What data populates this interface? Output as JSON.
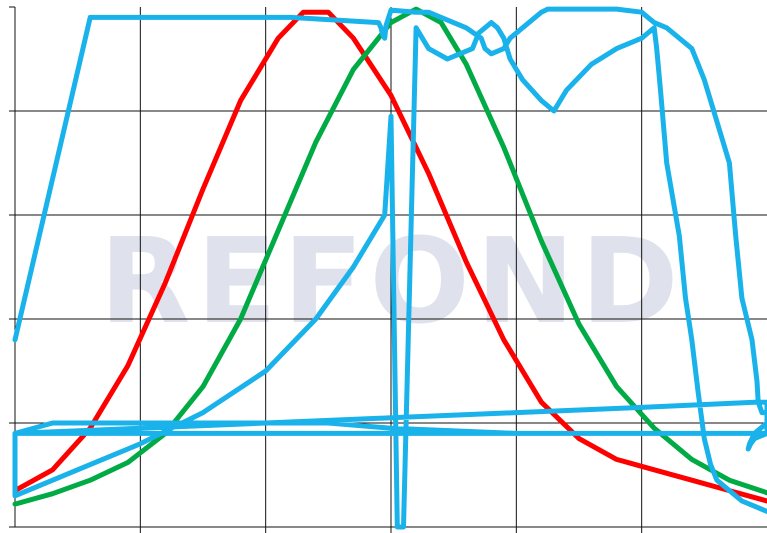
{
  "watermark": {
    "text": "REFOND",
    "color": "#dfe2ec"
  },
  "chart_data": {
    "type": "line",
    "title": "",
    "xlabel": "",
    "ylabel": "",
    "xlim": [
      0,
      6
    ],
    "ylim": [
      0,
      5
    ],
    "grid": true,
    "legend": "none",
    "x_gridlines": [
      1,
      2,
      3,
      4,
      5
    ],
    "y_gridlines": [
      1,
      2,
      3,
      4
    ],
    "series": [
      {
        "color": "#ff0000",
        "x": [
          0.0,
          0.3,
          0.6,
          0.9,
          1.2,
          1.5,
          1.8,
          2.1,
          2.3,
          2.5,
          2.7,
          3.0,
          3.3,
          3.6,
          3.9,
          4.2,
          4.5,
          4.8,
          5.1,
          5.4,
          5.7,
          6.0
        ],
        "y": [
          0.35,
          0.55,
          0.95,
          1.55,
          2.35,
          3.25,
          4.1,
          4.7,
          4.95,
          4.95,
          4.7,
          4.15,
          3.4,
          2.55,
          1.8,
          1.2,
          0.85,
          0.65,
          0.55,
          0.45,
          0.35,
          0.25
        ]
      },
      {
        "color": "#00aa44",
        "x": [
          0.0,
          0.3,
          0.6,
          0.9,
          1.2,
          1.5,
          1.8,
          2.1,
          2.4,
          2.7,
          3.0,
          3.2,
          3.4,
          3.6,
          3.9,
          4.2,
          4.5,
          4.8,
          5.1,
          5.4,
          5.7,
          6.0
        ],
        "y": [
          0.22,
          0.32,
          0.45,
          0.62,
          0.9,
          1.35,
          2.0,
          2.85,
          3.7,
          4.4,
          4.85,
          4.98,
          4.85,
          4.45,
          3.65,
          2.75,
          1.95,
          1.35,
          0.95,
          0.65,
          0.45,
          0.33
        ]
      },
      {
        "color": "#1ab2ea",
        "x": [
          0.0,
          0.6,
          1.6,
          2.2,
          2.9,
          2.92,
          2.93,
          2.94,
          2.95,
          2.96,
          3.0,
          3.2,
          3.3,
          3.4,
          3.6,
          3.72,
          3.75,
          3.8,
          3.9,
          3.95,
          4.1,
          4.2,
          4.25,
          4.4,
          4.8,
          5.0,
          5.05,
          5.1,
          5.2,
          5.3,
          5.4,
          5.45,
          5.5,
          5.55,
          5.7,
          5.75,
          5.8,
          5.88,
          5.9,
          5.92,
          5.93,
          5.96,
          6.0,
          6.0,
          6.0,
          5.95,
          5.9,
          5.88,
          5.86,
          5.85,
          5.87,
          5.9,
          6.0,
          6.0,
          6.0,
          5.0,
          4.5,
          4.6,
          5.2,
          5.8,
          6.0,
          6.0,
          5.9,
          5.0,
          4.0,
          3.0,
          2.0,
          1.0,
          0.0,
          0.0,
          1.0,
          2.0,
          3.0,
          4.0,
          5.0,
          6.0,
          6.0,
          5.0,
          4.0,
          3.0,
          2.5,
          2.0,
          1.0,
          0.3,
          0.0,
          0.0,
          0.3,
          0.6,
          1.0,
          1.5,
          2.0,
          2.4,
          2.7,
          2.95,
          3.0,
          3.05,
          3.1,
          3.2,
          3.3,
          3.45,
          3.55,
          3.65,
          3.7,
          3.75,
          3.8,
          3.85,
          3.9,
          3.95,
          4.05,
          4.2,
          4.3,
          4.4,
          4.6,
          4.8,
          5.0,
          5.05,
          5.1,
          5.12,
          5.15,
          5.2,
          5.3,
          5.35,
          5.4,
          5.45,
          5.5,
          5.55,
          5.6,
          5.7,
          5.8,
          5.9,
          6.0
        ],
        "y": [
          1.8,
          4.9,
          4.9,
          4.9,
          4.85,
          4.8,
          4.75,
          4.72,
          4.7,
          4.82,
          4.97,
          4.95,
          4.95,
          4.9,
          4.8,
          4.7,
          4.6,
          4.55,
          4.6,
          4.7,
          4.85,
          4.95,
          4.98,
          4.98,
          4.98,
          4.95,
          4.9,
          4.85,
          4.8,
          4.7,
          4.6,
          4.45,
          4.3,
          4.1,
          3.5,
          2.8,
          2.2,
          1.8,
          1.6,
          1.4,
          1.2,
          1.1,
          1.1,
          1.05,
          1.0,
          0.95,
          0.9,
          0.85,
          0.8,
          0.75,
          0.8,
          0.85,
          0.9,
          0.9,
          0.9,
          0.9,
          0.9,
          0.9,
          0.9,
          0.9,
          0.9,
          1.2,
          1.2,
          1.15,
          1.1,
          1.05,
          1.0,
          0.95,
          0.9,
          0.9,
          0.9,
          0.9,
          0.9,
          0.9,
          0.9,
          0.9,
          0.9,
          0.9,
          0.9,
          0.95,
          1.0,
          1.0,
          1.0,
          1.0,
          0.9,
          0.3,
          0.45,
          0.6,
          0.8,
          1.1,
          1.5,
          2.0,
          2.5,
          3.0,
          3.95,
          0.0,
          0.0,
          4.8,
          4.6,
          4.5,
          4.55,
          4.6,
          4.75,
          4.8,
          4.85,
          4.8,
          4.7,
          4.5,
          4.3,
          4.1,
          4.0,
          4.2,
          4.45,
          4.6,
          4.7,
          4.75,
          4.8,
          4.6,
          4.2,
          3.5,
          2.8,
          2.2,
          1.8,
          1.3,
          0.85,
          0.6,
          0.45,
          0.35,
          0.25,
          0.2,
          0.15
        ]
      }
    ]
  }
}
